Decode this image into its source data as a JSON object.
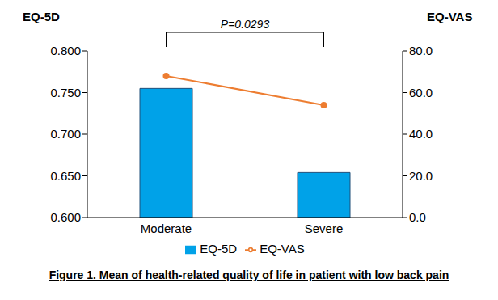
{
  "chart_data": {
    "type": "bar",
    "title": "Figure 1. Mean of health-related quality of life in patient with low back pain",
    "categories": [
      "Moderate",
      "Severe"
    ],
    "series": [
      {
        "name": "EQ-5D",
        "type": "bar",
        "color": "#00a2e8",
        "values": [
          0.755,
          0.654
        ]
      },
      {
        "name": "EQ-VAS",
        "type": "line",
        "color": "#ed7d31",
        "marker": "circle",
        "axis": "y2",
        "values": [
          68,
          54
        ]
      }
    ],
    "y_label": "EQ-5D",
    "y2_label": "EQ-VAS",
    "ylim": [
      0.6,
      0.8
    ],
    "yticks": [
      {
        "value": 0.6,
        "label": "0.600"
      },
      {
        "value": 0.65,
        "label": "0.650"
      },
      {
        "value": 0.7,
        "label": "0.700"
      },
      {
        "value": 0.75,
        "label": "0.750"
      },
      {
        "value": 0.8,
        "label": "0.800"
      }
    ],
    "y2lim": [
      0,
      80
    ],
    "y2ticks": [
      {
        "value": 0,
        "label": "0.0"
      },
      {
        "value": 20,
        "label": "20.0"
      },
      {
        "value": 40,
        "label": "40.0"
      },
      {
        "value": 60,
        "label": "60.0"
      },
      {
        "value": 80,
        "label": "80.0"
      }
    ],
    "annotations": [
      {
        "text": "P=0.0293"
      }
    ],
    "legend": "bottom",
    "grid": false
  }
}
